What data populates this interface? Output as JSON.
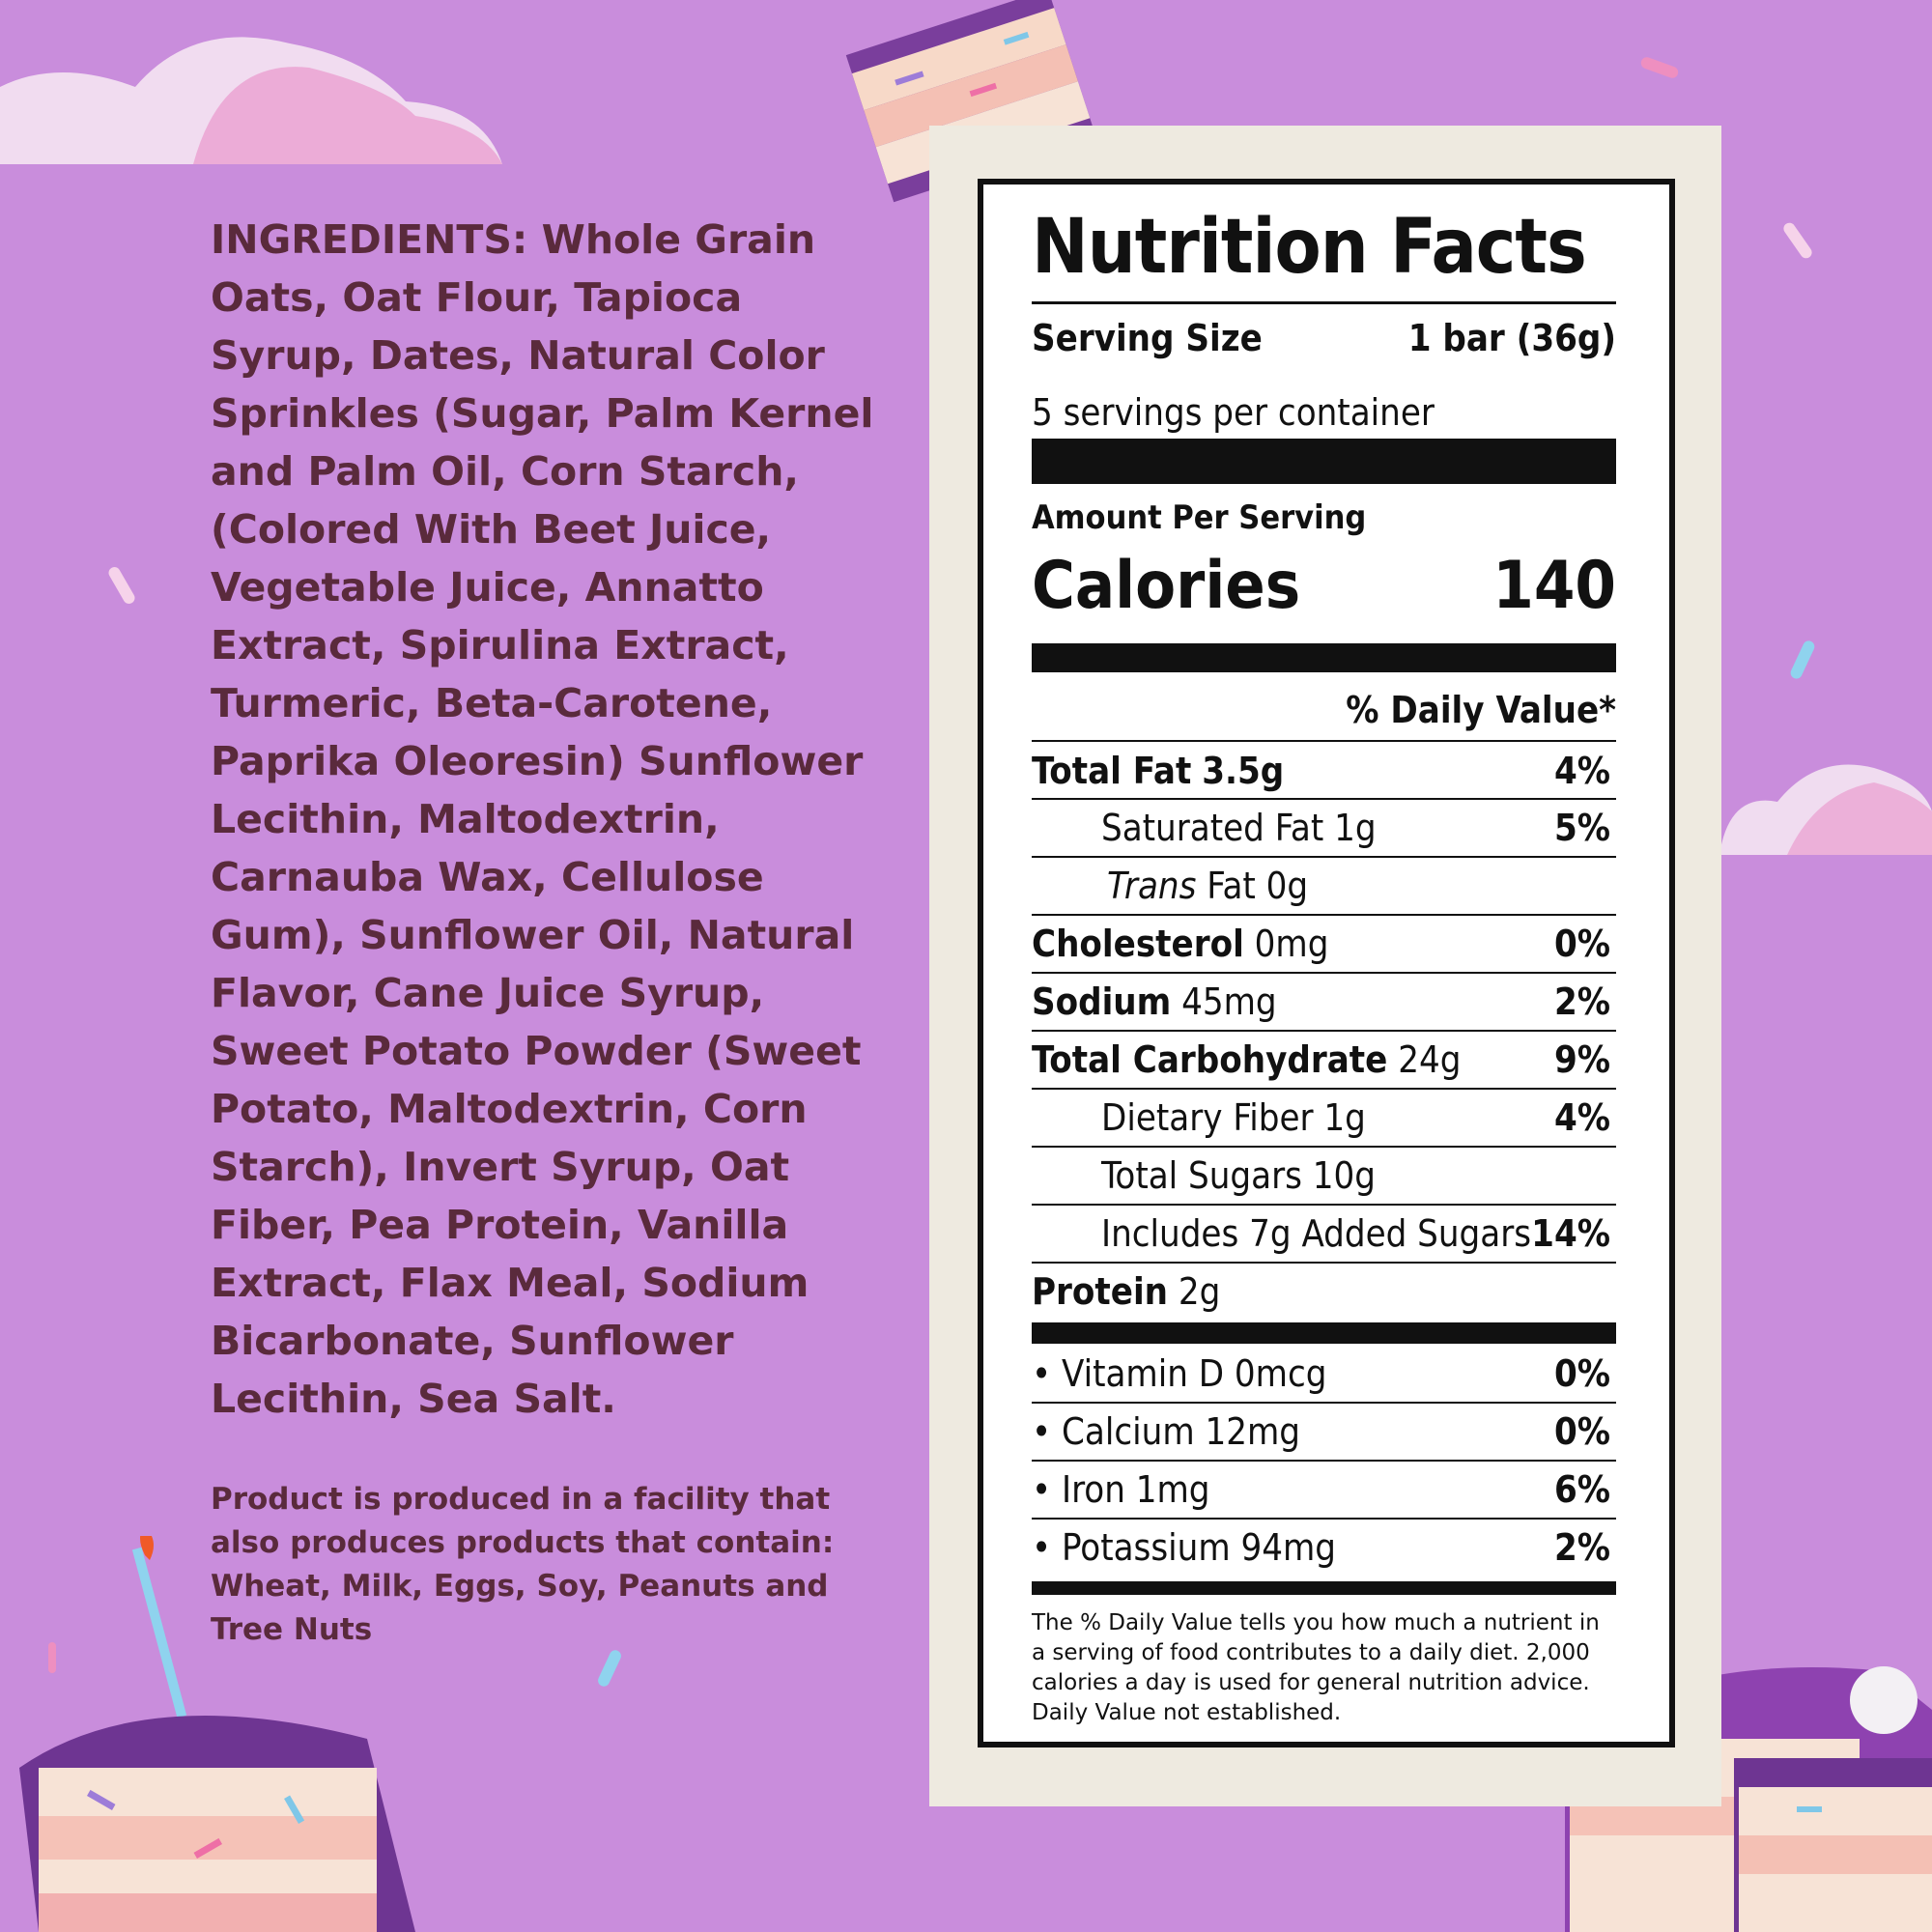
{
  "ingredients": {
    "label": "INGREDIENTS:",
    "text": "Whole Grain Oats, Oat Flour, Tapioca Syrup, Dates, Natural Color Sprinkles (Sugar, Palm Kernel and Palm Oil, Corn Starch, (Colored With Beet Juice, Vegetable Juice, Annatto Extract, Spirulina Extract, Turmeric, Beta-Carotene, Paprika Oleoresin) Sunflower Lecithin, Maltodextrin, Carnauba Wax, Cellulose Gum), Sunflower Oil, Natural Flavor, Cane Juice Syrup, Sweet Potato Powder (Sweet Potato, Maltodextrin, Corn Starch), Invert Syrup, Oat Fiber, Pea Protein, Vanilla Extract, Flax Meal, Sodium Bicarbonate, Sunflower Lecithin, Sea Salt."
  },
  "allergen": "Product is produced in a facility that also produces products that contain: Wheat, Milk, Eggs, Soy, Peanuts and Tree Nuts",
  "nutrition": {
    "title": "Nutrition Facts",
    "serving_size_label": "Serving Size",
    "serving_size_value": "1 bar (36g)",
    "servings_per_container": "5 servings per container",
    "amount_per_serving": "Amount Per Serving",
    "calories_label": "Calories",
    "calories_value": "140",
    "daily_value_header": "% Daily Value*",
    "total_fat": {
      "label": "Total Fat",
      "amount": "3.5g",
      "dv": "4%"
    },
    "saturated_fat": {
      "label": "Saturated Fat 1g",
      "dv": "5%"
    },
    "trans_fat": {
      "label_italic": "Trans",
      "label": "Fat 0g"
    },
    "cholesterol": {
      "label": "Cholesterol",
      "amount": "0mg",
      "dv": "0%"
    },
    "sodium": {
      "label": "Sodium",
      "amount": "45mg",
      "dv": "2%"
    },
    "total_carb": {
      "label": "Total Carbohydrate",
      "amount": "24g",
      "dv": "9%"
    },
    "dietary_fiber": {
      "label": "Dietary Fiber 1g",
      "dv": "4%"
    },
    "total_sugars": {
      "label": "Total Sugars 10g"
    },
    "added_sugars": {
      "label": "Includes 7g Added Sugars",
      "dv": "14%"
    },
    "protein": {
      "label": "Protein",
      "amount": "2g"
    },
    "vitamin_d": {
      "label": "• Vitamin D 0mcg",
      "dv": "0%"
    },
    "calcium": {
      "label": "• Calcium 12mg",
      "dv": "0%"
    },
    "iron": {
      "label": "• Iron 1mg",
      "dv": "6%"
    },
    "potassium": {
      "label": "• Potassium 94mg",
      "dv": "2%"
    },
    "footnote": "The % Daily Value tells you how much a nutrient in a serving of food contributes to a daily diet. 2,000 calories a day is used for general nutrition advice. Daily Value not established."
  },
  "colors": {
    "background": "#c98ddc",
    "text": "#5a2a3c",
    "panel": "#eeeae0"
  }
}
